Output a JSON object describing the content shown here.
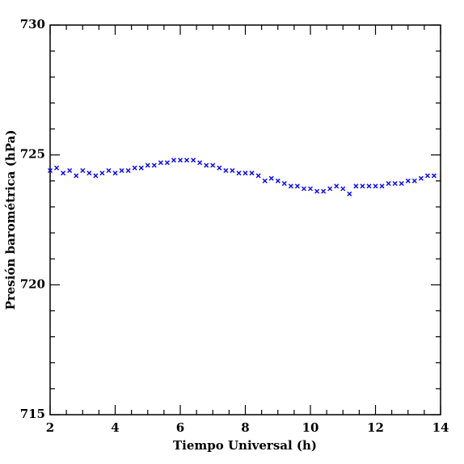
{
  "chart_data": {
    "type": "scatter",
    "x_label": "Tiempo Universal (h)",
    "y_label": "Presión barométrica (hPa)",
    "xlim": [
      2,
      14
    ],
    "ylim": [
      715,
      730
    ],
    "xticks": [
      2,
      4,
      6,
      8,
      10,
      12,
      14
    ],
    "yticks": [
      715,
      720,
      725,
      730
    ],
    "color": "#0000ff",
    "marker": "x",
    "x": [
      2.0,
      2.2,
      2.4,
      2.6,
      2.8,
      3.0,
      3.2,
      3.4,
      3.6,
      3.8,
      4.0,
      4.2,
      4.4,
      4.6,
      4.8,
      5.0,
      5.2,
      5.4,
      5.6,
      5.8,
      6.0,
      6.2,
      6.4,
      6.6,
      6.8,
      7.0,
      7.2,
      7.4,
      7.6,
      7.8,
      8.0,
      8.2,
      8.4,
      8.6,
      8.8,
      9.0,
      9.2,
      9.4,
      9.6,
      9.8,
      10.0,
      10.2,
      10.4,
      10.6,
      10.8,
      11.0,
      11.2,
      11.4,
      11.6,
      11.8,
      12.0,
      12.2,
      12.4,
      12.6,
      12.8,
      13.0,
      13.2,
      13.4,
      13.6,
      13.8
    ],
    "values": [
      724.4,
      724.5,
      724.3,
      724.4,
      724.2,
      724.4,
      724.3,
      724.2,
      724.3,
      724.4,
      724.3,
      724.4,
      724.4,
      724.5,
      724.5,
      724.6,
      724.6,
      724.7,
      724.7,
      724.8,
      724.8,
      724.8,
      724.8,
      724.7,
      724.6,
      724.6,
      724.5,
      724.4,
      724.4,
      724.3,
      724.3,
      724.3,
      724.2,
      724.0,
      724.1,
      724.0,
      723.9,
      723.8,
      723.8,
      723.7,
      723.7,
      723.6,
      723.6,
      723.7,
      723.8,
      723.7,
      723.5,
      723.8,
      723.8,
      723.8,
      723.8,
      723.8,
      723.9,
      723.9,
      723.9,
      724.0,
      724.0,
      724.1,
      724.2,
      724.2
    ]
  }
}
